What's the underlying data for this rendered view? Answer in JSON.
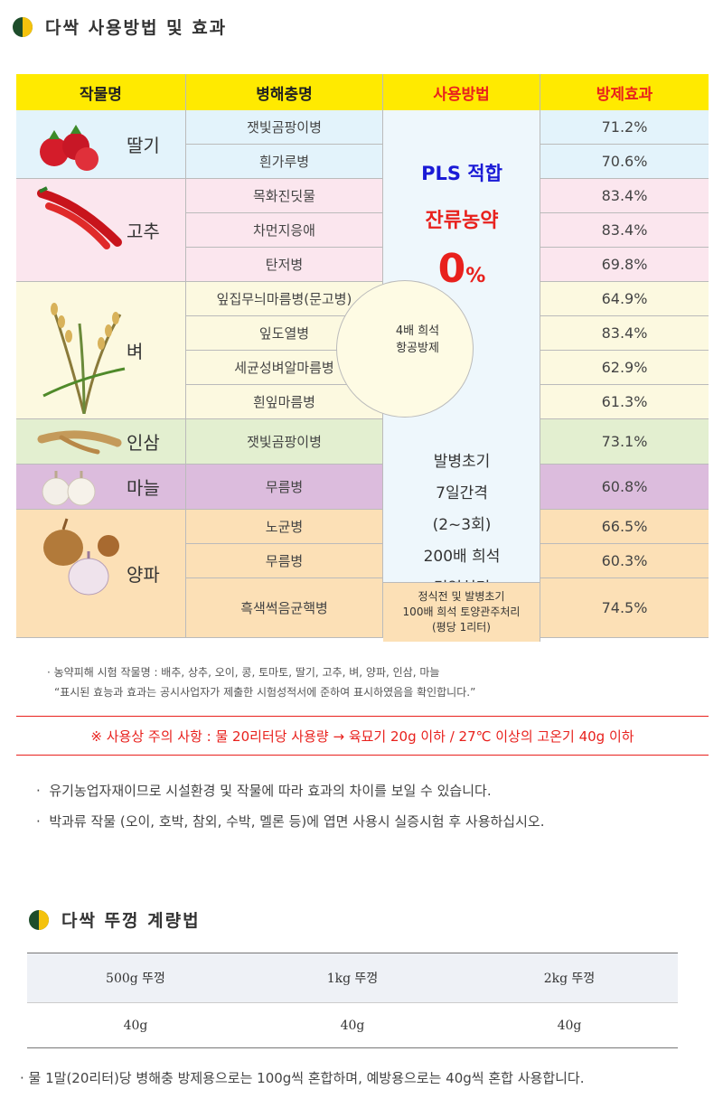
{
  "section1": {
    "title": "다싹 사용방법 및 효과"
  },
  "table": {
    "headers": {
      "crop": "작물명",
      "pest": "병해충명",
      "method": "사용방법",
      "effect": "방제효과"
    },
    "crops": [
      {
        "name": "딸기",
        "pests": [
          {
            "name": "잿빛곰팡이병",
            "effect": "71.2%"
          },
          {
            "name": "흰가루병",
            "effect": "70.6%"
          }
        ]
      },
      {
        "name": "고추",
        "pests": [
          {
            "name": "목화진딧물",
            "effect": "83.4%"
          },
          {
            "name": "차먼지응애",
            "effect": "83.4%"
          },
          {
            "name": "탄저병",
            "effect": "69.8%"
          }
        ]
      },
      {
        "name": "벼",
        "pests": [
          {
            "name": "잎집무늬마름병(문고병)",
            "effect": "64.9%"
          },
          {
            "name": "잎도열병",
            "effect": "83.4%"
          },
          {
            "name": "세균성벼알마름병",
            "effect": "62.9%"
          },
          {
            "name": "흰잎마름병",
            "effect": "61.3%"
          }
        ]
      },
      {
        "name": "인삼",
        "pests": [
          {
            "name": "잿빛곰팡이병",
            "effect": "73.1%"
          }
        ]
      },
      {
        "name": "마늘",
        "pests": [
          {
            "name": "무름병",
            "effect": "60.8%"
          }
        ]
      },
      {
        "name": "양파",
        "pests": [
          {
            "name": "노균병",
            "effect": "66.5%"
          },
          {
            "name": "무름병",
            "effect": "60.3%"
          },
          {
            "name": "흑색썩음균핵병",
            "effect": "74.5%"
          }
        ]
      }
    ],
    "method": {
      "pls": "PLS 적합",
      "residue": "잔류농약",
      "zero": "0",
      "zero_unit": "%",
      "aerial_line1": "4배 희석",
      "aerial_line2": "항공방제",
      "general_lines": [
        "발병초기",
        "7일간격",
        "(2~3회)",
        "200배 희석",
        "경엽처리"
      ],
      "soil_lines": [
        "정식전 및 발병초기",
        "100배 희석 토양관주처리",
        "(평당 1리터)"
      ]
    },
    "colors": {
      "header": "#ffea00",
      "strawberry": "#e3f3fb",
      "pepper": "#fbe6ee",
      "rice": "#fcf9e0",
      "ginseng": "#e3efd0",
      "garlic": "#dcbcdd",
      "onion": "#fce0b6",
      "red": "#e8211d",
      "blue": "#1a1ad6"
    }
  },
  "notes": {
    "tested_crops": "농약피해 시험 작물명 : 배추, 상추, 오이, 콩, 토마토, 딸기, 고추, 벼, 양파, 인삼, 마늘",
    "disclaimer": "“표시된 효능과 효과는 공시사업자가 제출한 시험성적서에 준하여 표시하였음을 확인합니다.”",
    "warning": "※ 사용상 주의 사항 :  물 20리터당 사용량 →  육묘기 20g 이하 / 27℃ 이상의 고온기 40g  이하",
    "note1": "유기농업자재이므로 시설환경 및 작물에 따라 효과의 차이를 보일 수 있습니다.",
    "note2": "박과류 작물 (오이, 호박, 참외, 수박, 멜론 등)에 엽면 사용시 실증시험 후 사용하십시오."
  },
  "section2": {
    "title": "다싹 뚜껑 계량법",
    "headers": [
      "500g 뚜껑",
      "1kg 뚜껑",
      "2kg 뚜껑"
    ],
    "values": [
      "40g",
      "40g",
      "40g"
    ],
    "final_note": "물 1말(20리터)당 병해충 방제용으로는 100g씩 혼합하며, 예방용으로는 40g씩 혼합 사용합니다."
  }
}
